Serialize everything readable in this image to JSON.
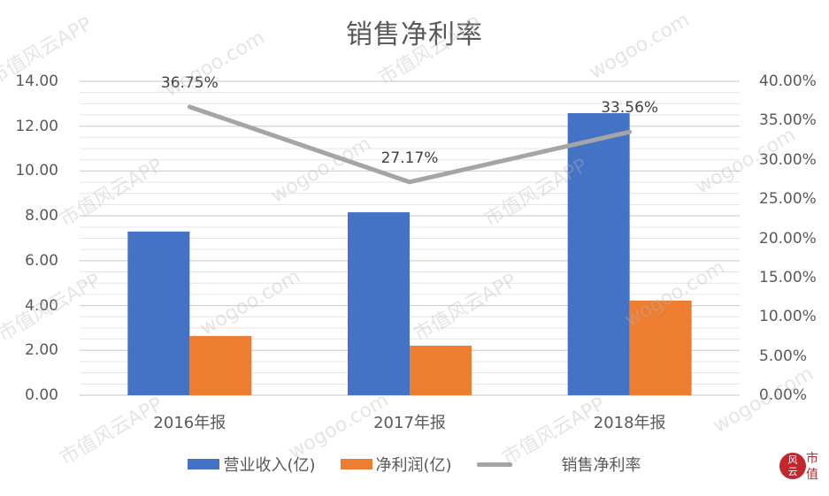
{
  "title": "销售净利率",
  "left_axis": {
    "ticks": [
      "14.00",
      "12.00",
      "10.00",
      "8.00",
      "6.00",
      "4.00",
      "2.00",
      "0.00"
    ]
  },
  "right_axis": {
    "ticks": [
      "40.00%",
      "35.00%",
      "30.00%",
      "25.00%",
      "20.00%",
      "15.00%",
      "10.00%",
      "5.00%",
      "0.00%"
    ]
  },
  "categories": [
    "2016年报",
    "2017年报",
    "2018年报"
  ],
  "data_labels": [
    "36.75%",
    "27.17%",
    "33.56%"
  ],
  "legend": {
    "revenue": "营业收入(亿)",
    "profit": "净利润(亿)",
    "margin": "销售净利率"
  },
  "colors": {
    "revenue": "#4472c4",
    "profit": "#ed7d31",
    "margin": "#a5a5a5"
  },
  "watermark": {
    "text1": "市值风云APP",
    "text2": "wogoo.com"
  },
  "logo": {
    "left": "风云",
    "right": "市值"
  },
  "chart_data": {
    "type": "bar",
    "title": "销售净利率",
    "categories": [
      "2016年报",
      "2017年报",
      "2018年报"
    ],
    "series": [
      {
        "name": "营业收入(亿)",
        "type": "bar",
        "axis": "left",
        "values": [
          7.3,
          8.16,
          12.58
        ]
      },
      {
        "name": "净利润(亿)",
        "type": "bar",
        "axis": "left",
        "values": [
          2.64,
          2.21,
          4.22
        ]
      },
      {
        "name": "销售净利率",
        "type": "line",
        "axis": "right",
        "values": [
          0.3675,
          0.2717,
          0.3356
        ],
        "labels": [
          "36.75%",
          "27.17%",
          "33.56%"
        ]
      }
    ],
    "xlabel": "",
    "ylabel": "",
    "ylim": [
      0,
      14
    ],
    "y2lim": [
      0,
      0.4
    ],
    "grid": true,
    "legend_position": "bottom"
  }
}
